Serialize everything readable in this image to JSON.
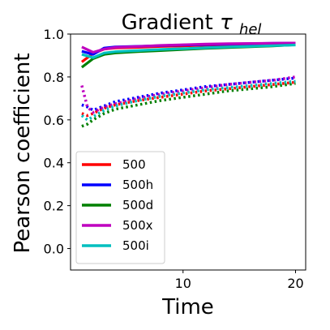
{
  "chart_data": {
    "type": "line",
    "title": "Gradient",
    "title_symbol": "τ",
    "title_subscript": "hel",
    "xlabel": "Time",
    "ylabel": "Pearson coefficient",
    "xlim": [
      0,
      20.9
    ],
    "ylim": [
      -0.1,
      1.0
    ],
    "xticks": [
      10,
      20
    ],
    "yticks": [
      0.0,
      0.2,
      0.4,
      0.6,
      0.8,
      1.0
    ],
    "ytick_labels": [
      "0.0",
      "0.2",
      "0.4",
      "0.6",
      "0.8",
      "1.0"
    ],
    "grid": false,
    "legend_position": "lower-left",
    "legend": [
      {
        "name": "500",
        "color": "#ff0000"
      },
      {
        "name": "500h",
        "color": "#0000ff"
      },
      {
        "name": "500d",
        "color": "#008000"
      },
      {
        "name": "500x",
        "color": "#bf00bf"
      },
      {
        "name": "500i",
        "color": "#00bfbf"
      }
    ],
    "solid_series": [
      {
        "name": "500",
        "color": "#ff0000",
        "points": [
          [
            1,
            0.87
          ],
          [
            2,
            0.91
          ],
          [
            3,
            0.93
          ],
          [
            4,
            0.935
          ],
          [
            6,
            0.938
          ],
          [
            8,
            0.942
          ],
          [
            10,
            0.945
          ],
          [
            12,
            0.948
          ],
          [
            14,
            0.95
          ],
          [
            16,
            0.952
          ],
          [
            18,
            0.953
          ],
          [
            20,
            0.955
          ]
        ]
      },
      {
        "name": "500h",
        "color": "#0000ff",
        "points": [
          [
            1,
            0.92
          ],
          [
            2,
            0.905
          ],
          [
            3,
            0.935
          ],
          [
            4,
            0.94
          ],
          [
            6,
            0.943
          ],
          [
            8,
            0.946
          ],
          [
            10,
            0.949
          ],
          [
            12,
            0.951
          ],
          [
            14,
            0.953
          ],
          [
            16,
            0.955
          ],
          [
            18,
            0.957
          ],
          [
            20,
            0.958
          ]
        ]
      },
      {
        "name": "500d",
        "color": "#008000",
        "points": [
          [
            1,
            0.845
          ],
          [
            2,
            0.885
          ],
          [
            3,
            0.905
          ],
          [
            4,
            0.912
          ],
          [
            6,
            0.918
          ],
          [
            8,
            0.923
          ],
          [
            10,
            0.928
          ],
          [
            12,
            0.933
          ],
          [
            14,
            0.937
          ],
          [
            16,
            0.941
          ],
          [
            18,
            0.945
          ],
          [
            20,
            0.95
          ]
        ]
      },
      {
        "name": "500x",
        "color": "#bf00bf",
        "points": [
          [
            1,
            0.94
          ],
          [
            2,
            0.915
          ],
          [
            3,
            0.93
          ],
          [
            4,
            0.938
          ],
          [
            6,
            0.942
          ],
          [
            8,
            0.947
          ],
          [
            10,
            0.95
          ],
          [
            12,
            0.953
          ],
          [
            14,
            0.955
          ],
          [
            16,
            0.956
          ],
          [
            18,
            0.957
          ],
          [
            20,
            0.958
          ]
        ]
      },
      {
        "name": "500i",
        "color": "#00bfbf",
        "points": [
          [
            1,
            0.905
          ],
          [
            2,
            0.89
          ],
          [
            3,
            0.912
          ],
          [
            4,
            0.918
          ],
          [
            6,
            0.923
          ],
          [
            8,
            0.928
          ],
          [
            10,
            0.932
          ],
          [
            12,
            0.936
          ],
          [
            14,
            0.94
          ],
          [
            16,
            0.943
          ],
          [
            18,
            0.946
          ],
          [
            20,
            0.949
          ]
        ]
      }
    ],
    "dotted_series": [
      {
        "name": "500",
        "color": "#ff0000",
        "points": [
          [
            1,
            0.63
          ],
          [
            1.5,
            0.62
          ],
          [
            2,
            0.63
          ],
          [
            3,
            0.655
          ],
          [
            4,
            0.67
          ],
          [
            6,
            0.69
          ],
          [
            8,
            0.705
          ],
          [
            10,
            0.72
          ],
          [
            12,
            0.735
          ],
          [
            14,
            0.745
          ],
          [
            16,
            0.755
          ],
          [
            18,
            0.765
          ],
          [
            20,
            0.775
          ]
        ]
      },
      {
        "name": "500h",
        "color": "#0000ff",
        "points": [
          [
            1,
            0.67
          ],
          [
            1.5,
            0.66
          ],
          [
            2,
            0.645
          ],
          [
            3,
            0.665
          ],
          [
            4,
            0.685
          ],
          [
            6,
            0.705
          ],
          [
            8,
            0.725
          ],
          [
            10,
            0.74
          ],
          [
            12,
            0.755
          ],
          [
            14,
            0.765
          ],
          [
            16,
            0.775
          ],
          [
            18,
            0.785
          ],
          [
            20,
            0.795
          ]
        ]
      },
      {
        "name": "500d",
        "color": "#008000",
        "points": [
          [
            1,
            0.57
          ],
          [
            1.5,
            0.58
          ],
          [
            2,
            0.6
          ],
          [
            3,
            0.63
          ],
          [
            4,
            0.65
          ],
          [
            6,
            0.67
          ],
          [
            8,
            0.69
          ],
          [
            10,
            0.705
          ],
          [
            12,
            0.72
          ],
          [
            14,
            0.735
          ],
          [
            16,
            0.745
          ],
          [
            18,
            0.755
          ],
          [
            20,
            0.77
          ]
        ]
      },
      {
        "name": "500x",
        "color": "#bf00bf",
        "points": [
          [
            1,
            0.76
          ],
          [
            1.5,
            0.66
          ],
          [
            2,
            0.635
          ],
          [
            3,
            0.66
          ],
          [
            4,
            0.675
          ],
          [
            6,
            0.7
          ],
          [
            8,
            0.72
          ],
          [
            10,
            0.735
          ],
          [
            12,
            0.75
          ],
          [
            14,
            0.765
          ],
          [
            16,
            0.775
          ],
          [
            18,
            0.785
          ],
          [
            20,
            0.8
          ]
        ]
      },
      {
        "name": "500i",
        "color": "#00bfbf",
        "points": [
          [
            1,
            0.62
          ],
          [
            1.5,
            0.6
          ],
          [
            2,
            0.615
          ],
          [
            3,
            0.645
          ],
          [
            4,
            0.665
          ],
          [
            6,
            0.69
          ],
          [
            8,
            0.71
          ],
          [
            10,
            0.725
          ],
          [
            12,
            0.74
          ],
          [
            14,
            0.75
          ],
          [
            16,
            0.76
          ],
          [
            18,
            0.77
          ],
          [
            20,
            0.78
          ]
        ]
      }
    ]
  }
}
